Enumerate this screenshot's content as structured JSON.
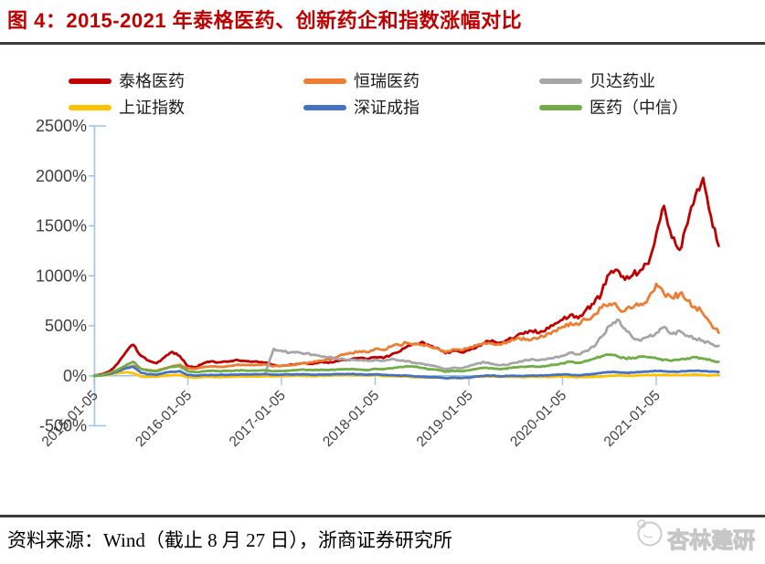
{
  "title": "图 4：2015-2021 年泰格医药、创新药企和指数涨幅对比",
  "source_note": "资料来源：Wind（截止 8 月 27 日），浙商证券研究所",
  "watermark": {
    "text": "杏林建研",
    "logo": "mascot-circle-icon"
  },
  "colors": {
    "title": "#C00000",
    "axis": "#9DC3E6",
    "divider": "#3B3B3B",
    "tick_label": "#404040"
  },
  "chart_data": {
    "type": "line",
    "title": "2015-2021 年泰格医药、创新药企和指数涨幅对比",
    "legend_position": "top",
    "grid": false,
    "ylim": [
      -500,
      2500
    ],
    "y_ticks": [
      2500,
      2000,
      1500,
      1000,
      500,
      0,
      -500
    ],
    "y_tick_labels": [
      "2500%",
      "2000%",
      "1500%",
      "1000%",
      "500%",
      "0%",
      "-500%"
    ],
    "x_tick_months": [
      0,
      12,
      24,
      36,
      48,
      60,
      72
    ],
    "x_tick_labels": [
      "2015-01-05",
      "2016-01-05",
      "2017-01-05",
      "2018-01-05",
      "2019-01-05",
      "2020-01-05",
      "2021-01-05"
    ],
    "x_start": "2015-01-05",
    "x_end": "2021-08-27",
    "x_unit": "month",
    "unit": "percent_change",
    "series": [
      {
        "name": "泰格医药",
        "id": "taige",
        "color": "#C00000",
        "start_month": 0,
        "values": [
          0,
          15,
          45,
          120,
          230,
          310,
          200,
          150,
          125,
          185,
          240,
          195,
          95,
          85,
          125,
          145,
          135,
          140,
          155,
          150,
          140,
          138,
          132,
          108,
          100,
          108,
          118,
          128,
          118,
          138,
          128,
          148,
          158,
          168,
          178,
          168,
          188,
          178,
          208,
          238,
          288,
          318,
          340,
          298,
          278,
          225,
          252,
          235,
          255,
          285,
          330,
          355,
          330,
          360,
          390,
          420,
          450,
          430,
          480,
          520,
          560,
          610,
          575,
          660,
          720,
          830,
          1020,
          1060,
          960,
          1010,
          1060,
          1120,
          1420,
          1700,
          1380,
          1260,
          1520,
          1800,
          1980,
          1600,
          1300
        ]
      },
      {
        "name": "恒瑞医药",
        "id": "hengrui",
        "color": "#ED7D31",
        "start_month": 0,
        "values": [
          0,
          10,
          25,
          50,
          80,
          100,
          70,
          55,
          50,
          75,
          95,
          110,
          75,
          70,
          85,
          95,
          90,
          95,
          105,
          110,
          105,
          108,
          112,
          95,
          100,
          105,
          115,
          125,
          135,
          150,
          165,
          185,
          210,
          225,
          245,
          235,
          270,
          260,
          290,
          310,
          330,
          320,
          310,
          290,
          270,
          235,
          265,
          255,
          280,
          300,
          330,
          320,
          310,
          340,
          365,
          380,
          360,
          380,
          420,
          450,
          490,
          530,
          510,
          560,
          610,
          680,
          720,
          690,
          650,
          680,
          720,
          780,
          920,
          820,
          780,
          820,
          750,
          690,
          620,
          520,
          430
        ]
      },
      {
        "name": "贝达药业",
        "id": "betta",
        "color": "#A6A6A6",
        "start_month": 22,
        "values": [
          40,
          270,
          250,
          230,
          240,
          220,
          210,
          195,
          185,
          175,
          165,
          160,
          155,
          150,
          160,
          150,
          165,
          155,
          145,
          130,
          120,
          105,
          90,
          65,
          80,
          75,
          95,
          120,
          135,
          120,
          105,
          110,
          130,
          150,
          165,
          155,
          170,
          185,
          200,
          230,
          215,
          250,
          290,
          390,
          500,
          560,
          470,
          380,
          350,
          390,
          430,
          490,
          420,
          450,
          400,
          370,
          350,
          320,
          300
        ]
      },
      {
        "name": "上证指数",
        "id": "sse",
        "color": "#FFC000",
        "start_month": 0,
        "values": [
          0,
          3,
          10,
          25,
          35,
          28,
          -8,
          -10,
          -8,
          0,
          5,
          8,
          -15,
          -18,
          -12,
          -10,
          -12,
          -10,
          -8,
          -6,
          -7,
          -6,
          -4,
          -6,
          -4,
          -2,
          0,
          -1,
          -3,
          0,
          2,
          4,
          4,
          5,
          3,
          2,
          6,
          -2,
          -4,
          -6,
          -8,
          -14,
          -16,
          -18,
          -18,
          -24,
          -22,
          -24,
          -21,
          -10,
          -7,
          -6,
          -12,
          -10,
          -10,
          -13,
          -10,
          -10,
          -12,
          -8,
          -6,
          -11,
          -15,
          -13,
          -11,
          -8,
          1,
          4,
          0,
          0,
          4,
          7,
          8,
          10,
          6,
          6,
          10,
          12,
          8,
          4,
          10
        ]
      },
      {
        "name": "深证成指",
        "id": "szse",
        "color": "#4472C4",
        "start_month": 0,
        "values": [
          0,
          5,
          20,
          45,
          75,
          90,
          30,
          15,
          10,
          30,
          40,
          45,
          8,
          2,
          8,
          10,
          8,
          10,
          12,
          14,
          12,
          14,
          16,
          10,
          12,
          14,
          16,
          14,
          10,
          12,
          14,
          16,
          16,
          18,
          14,
          10,
          14,
          8,
          6,
          4,
          2,
          -6,
          -10,
          -14,
          -16,
          -24,
          -20,
          -22,
          -18,
          -6,
          0,
          2,
          -6,
          -2,
          0,
          -2,
          2,
          2,
          4,
          8,
          14,
          10,
          4,
          12,
          18,
          28,
          38,
          36,
          30,
          32,
          38,
          42,
          48,
          44,
          40,
          42,
          48,
          50,
          46,
          42,
          38
        ]
      },
      {
        "name": "医药（中信）",
        "id": "pharma-citic",
        "color": "#70AD47",
        "start_month": 0,
        "values": [
          0,
          10,
          30,
          60,
          100,
          140,
          70,
          50,
          45,
          70,
          90,
          95,
          45,
          35,
          45,
          50,
          45,
          48,
          52,
          55,
          50,
          52,
          55,
          45,
          48,
          52,
          58,
          60,
          55,
          60,
          58,
          62,
          65,
          68,
          62,
          55,
          70,
          65,
          75,
          85,
          95,
          90,
          80,
          65,
          60,
          40,
          50,
          45,
          55,
          70,
          80,
          75,
          65,
          75,
          85,
          90,
          95,
          90,
          100,
          110,
          125,
          140,
          130,
          150,
          170,
          195,
          210,
          195,
          175,
          180,
          190,
          185,
          175,
          160,
          150,
          160,
          175,
          185,
          170,
          155,
          140
        ]
      }
    ]
  }
}
